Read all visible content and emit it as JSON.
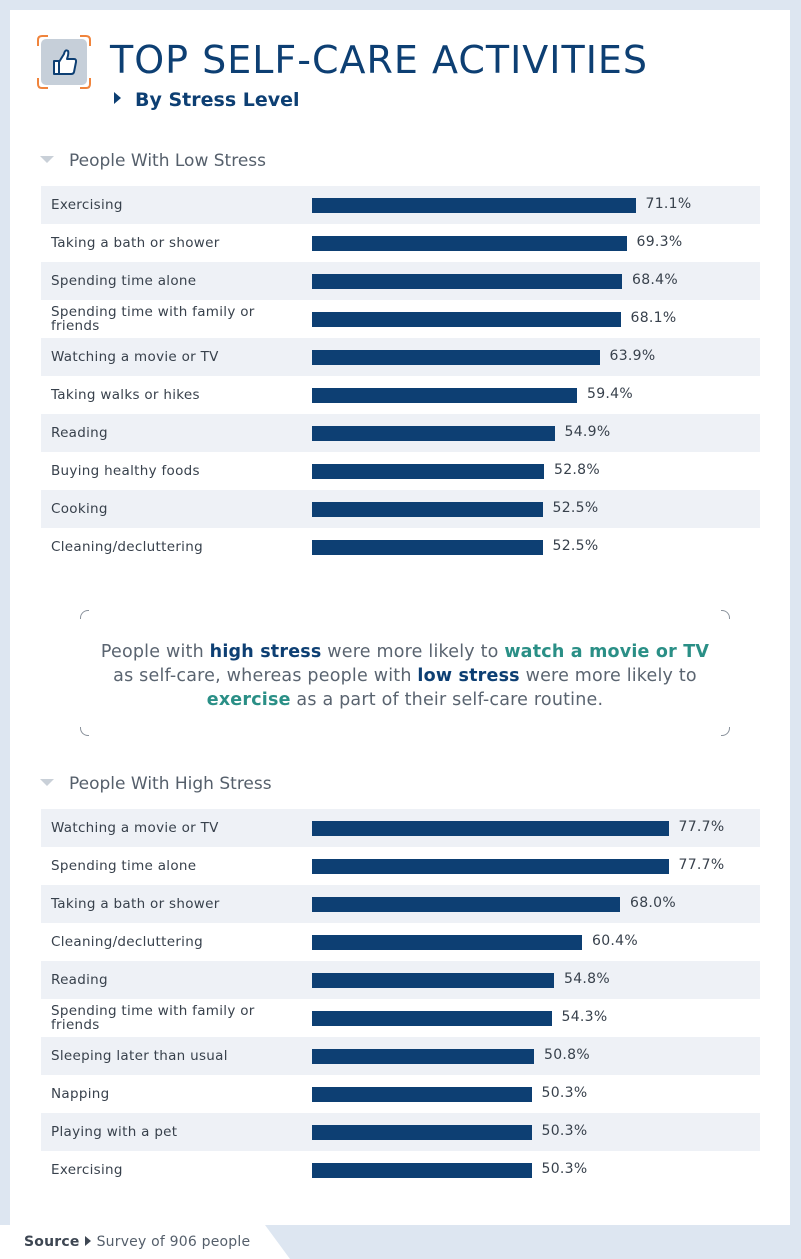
{
  "header": {
    "title": "TOP SELF-CARE ACTIVITIES",
    "subtitle": "By Stress Level",
    "icon": "thumbs-up-icon"
  },
  "chart_data": [
    {
      "type": "bar",
      "orientation": "horizontal",
      "title": "People With Low Stress",
      "categories": [
        "Exercising",
        "Taking a bath or shower",
        "Spending time alone",
        "Spending time with family or friends",
        "Watching a movie or TV",
        "Taking walks or hikes",
        "Reading",
        "Buying healthy foods",
        "Cooking",
        "Cleaning/decluttering"
      ],
      "values": [
        71.1,
        69.3,
        68.4,
        68.1,
        63.9,
        59.4,
        54.9,
        52.8,
        52.5,
        52.5
      ],
      "value_labels": [
        "71.1%",
        "69.3%",
        "68.4%",
        "68.1%",
        "63.9%",
        "59.4%",
        "54.9%",
        "52.8%",
        "52.5%",
        "52.5%"
      ],
      "xlim": [
        0,
        100
      ],
      "bar_color": "#0d3f73"
    },
    {
      "type": "bar",
      "orientation": "horizontal",
      "title": "People With High Stress",
      "categories": [
        "Watching a movie or TV",
        "Spending time alone",
        "Taking a bath or shower",
        "Cleaning/decluttering",
        "Reading",
        "Spending time with family or friends",
        "Sleeping later than usual",
        "Napping",
        "Playing with a pet",
        "Exercising"
      ],
      "values": [
        77.7,
        77.7,
        68.0,
        60.4,
        54.8,
        54.3,
        50.8,
        50.3,
        50.3,
        50.3
      ],
      "value_labels": [
        "77.7%",
        "77.7%",
        "68.0%",
        "60.4%",
        "54.8%",
        "54.3%",
        "50.8%",
        "50.3%",
        "50.3%",
        "50.3%"
      ],
      "xlim": [
        0,
        100
      ],
      "bar_color": "#0d3f73"
    }
  ],
  "callout": {
    "p1": "People with ",
    "b1": "high stress",
    "p2": " were more likely to ",
    "t1": "watch a movie or TV",
    "p3": " as self-care, whereas people with ",
    "b2": "low stress",
    "p4": " were more likely to ",
    "t2": "exercise",
    "p5": " as a part of their self-care routine."
  },
  "footer": {
    "source_label": "Source",
    "source_text": "Survey of 906 people"
  },
  "colors": {
    "navy": "#0d3f73",
    "teal": "#2a8f86",
    "row_shade": "#eef1f6",
    "background": "#dde6f1"
  }
}
